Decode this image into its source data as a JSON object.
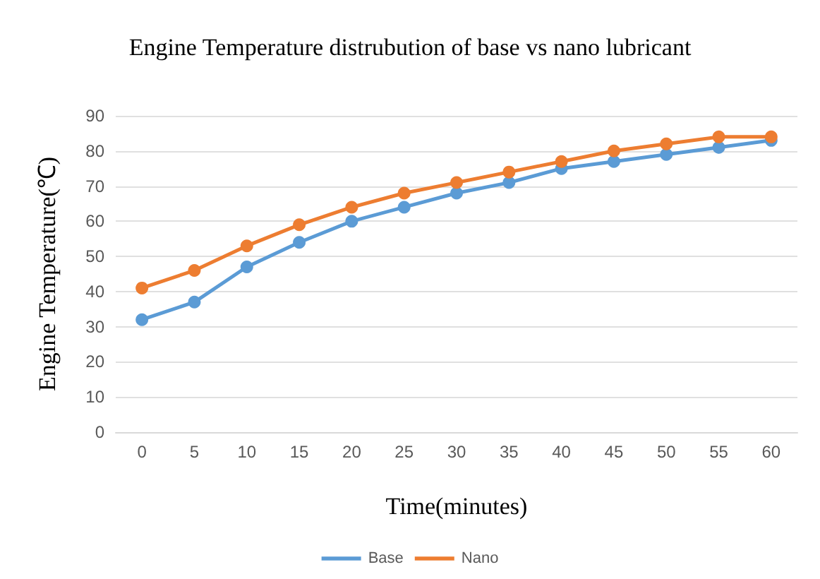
{
  "chart_data": {
    "type": "line",
    "title": "Engine Temperature distrubution of base vs nano lubricant",
    "xlabel": "Time(minutes)",
    "ylabel": "Engine Temperature(℃)",
    "categories": [
      "0",
      "5",
      "10",
      "15",
      "20",
      "25",
      "30",
      "35",
      "40",
      "45",
      "50",
      "55",
      "60"
    ],
    "series": [
      {
        "name": "Base",
        "color": "#5b9bd5",
        "values": [
          32,
          37,
          47,
          54,
          60,
          64,
          68,
          71,
          75,
          77,
          79,
          81,
          83
        ]
      },
      {
        "name": "Nano",
        "color": "#ed7d31",
        "values": [
          41,
          46,
          53,
          59,
          64,
          68,
          71,
          74,
          77,
          80,
          82,
          84,
          84
        ]
      }
    ],
    "ylim": [
      0,
      90
    ],
    "yticks": [
      0,
      10,
      20,
      30,
      40,
      50,
      60,
      70,
      80,
      90
    ],
    "grid": "y",
    "legend": "bottom",
    "marker": "circle",
    "line_style": "solid"
  }
}
